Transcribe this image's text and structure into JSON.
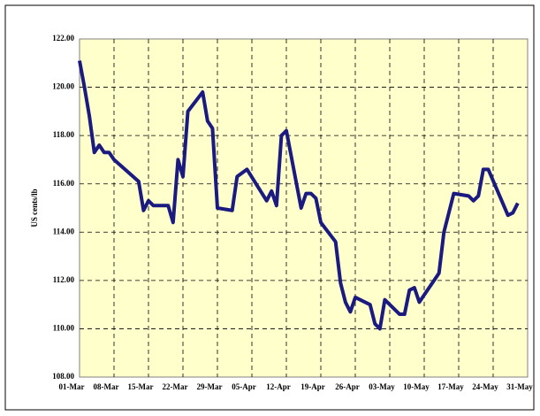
{
  "chart_data": {
    "type": "line",
    "ylabel": "US cents/lb",
    "x": [
      "01-Mar",
      "02-Mar",
      "03-Mar",
      "04-Mar",
      "05-Mar",
      "06-Mar",
      "07-Mar",
      "08-Mar",
      "13-Mar",
      "14-Mar",
      "15-Mar",
      "16-Mar",
      "19-Mar",
      "20-Mar",
      "21-Mar",
      "22-Mar",
      "23-Mar",
      "26-Mar",
      "27-Mar",
      "28-Mar",
      "29-Mar",
      "01-Apr",
      "02-Apr",
      "04-Apr",
      "08-Apr",
      "09-Apr",
      "10-Apr",
      "11-Apr",
      "12-Apr",
      "15-Apr",
      "16-Apr",
      "17-Apr",
      "18-Apr",
      "19-Apr",
      "22-Apr",
      "23-Apr",
      "24-Apr",
      "25-Apr",
      "26-Apr",
      "29-Apr",
      "30-Apr",
      "01-May",
      "02-May",
      "05-May",
      "06-May",
      "07-May",
      "08-May",
      "09-May",
      "13-May",
      "14-May",
      "16-May",
      "19-May",
      "20-May",
      "21-May",
      "22-May",
      "23-May",
      "27-May",
      "28-May",
      "29-May"
    ],
    "series": [
      {
        "color": "#1a1a80",
        "values": [
          121.1,
          120.0,
          118.8,
          117.3,
          117.6,
          117.3,
          117.3,
          117.0,
          116.1,
          114.9,
          115.3,
          115.1,
          115.1,
          114.4,
          117.0,
          116.3,
          119.0,
          119.8,
          118.6,
          118.3,
          115.0,
          114.9,
          116.3,
          116.6,
          115.3,
          115.7,
          115.1,
          118.0,
          118.2,
          115.0,
          115.6,
          115.6,
          115.4,
          114.4,
          113.6,
          111.9,
          111.1,
          110.7,
          111.3,
          111.0,
          110.2,
          110.0,
          111.2,
          110.6,
          110.6,
          111.6,
          111.7,
          111.1,
          112.3,
          114.0,
          115.6,
          115.5,
          115.3,
          115.5,
          116.6,
          116.6,
          114.7,
          114.8,
          115.2
        ]
      }
    ],
    "xlim": [
      "01-Mar",
      "31-May"
    ],
    "xticks": [
      "01-Mar",
      "08-Mar",
      "15-Mar",
      "22-Mar",
      "29-Mar",
      "05-Apr",
      "12-Apr",
      "19-Apr",
      "26-Apr",
      "03-May",
      "10-May",
      "17-May",
      "24-May",
      "31-May"
    ],
    "ylim": [
      108,
      122
    ],
    "yticks": [
      {
        "value": 108,
        "label": "108.00"
      },
      {
        "value": 110,
        "label": "110.00"
      },
      {
        "value": 112,
        "label": "112.00"
      },
      {
        "value": 114,
        "label": "114.00"
      },
      {
        "value": 116,
        "label": "116.00"
      },
      {
        "value": 118,
        "label": "118.00"
      },
      {
        "value": 120,
        "label": "120.00"
      },
      {
        "value": 122,
        "label": "122.00"
      }
    ],
    "grid": true
  }
}
